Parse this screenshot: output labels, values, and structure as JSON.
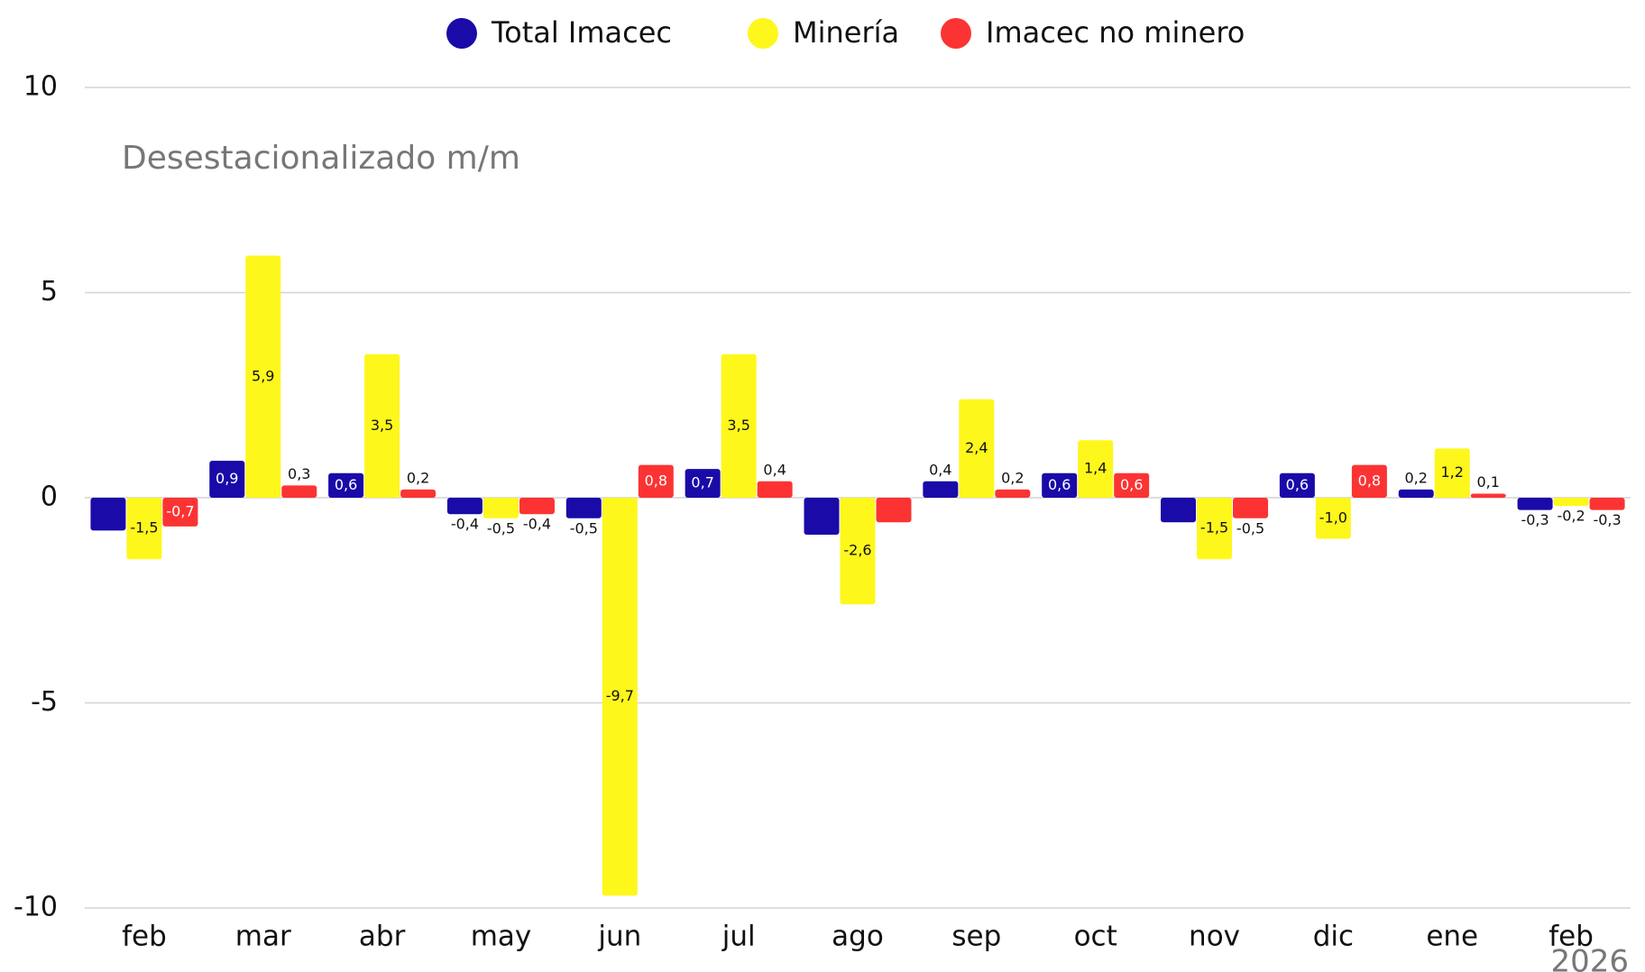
{
  "chart_data": {
    "type": "bar",
    "subtitle": "Desestacionalizado m/m",
    "annotation": "2026",
    "categories": [
      "feb",
      "mar",
      "abr",
      "may",
      "jun",
      "jul",
      "ago",
      "sep",
      "oct",
      "nov",
      "dic",
      "ene",
      "feb"
    ],
    "series": [
      {
        "name": "Total Imacec",
        "color": "#1a0aa8",
        "values": [
          -0.8,
          0.9,
          0.6,
          -0.4,
          -0.5,
          0.7,
          -0.9,
          0.4,
          0.6,
          -0.6,
          0.6,
          0.2,
          -0.3
        ],
        "value_labels": [
          null,
          "0,9",
          "0,6",
          "-0,4",
          "-0,5",
          "0,7",
          null,
          "0,4",
          "0,6",
          null,
          "0,6",
          "0,2",
          "-0,3"
        ]
      },
      {
        "name": "Minería",
        "color": "#fef71c",
        "values": [
          -1.5,
          5.9,
          3.5,
          -0.5,
          -9.7,
          3.5,
          -2.6,
          2.4,
          1.4,
          -1.5,
          -1.0,
          1.2,
          -0.2
        ],
        "value_labels": [
          "-1,5",
          "5,9",
          "3,5",
          "-0,5",
          "-9,7",
          "3,5",
          "-2,6",
          "2,4",
          "1,4",
          "-1,5",
          "-1,0",
          "1,2",
          "-0,2"
        ]
      },
      {
        "name": "Imacec no minero",
        "color": "#fc3333",
        "values": [
          -0.7,
          0.3,
          0.2,
          -0.4,
          0.8,
          0.4,
          -0.6,
          0.2,
          0.6,
          -0.5,
          0.8,
          0.1,
          -0.3
        ],
        "value_labels": [
          "-0,7",
          "0,3",
          "0,2",
          "-0,4",
          "0,8",
          "0,4",
          null,
          "0,2",
          "0,6",
          "-0,5",
          "0,8",
          "0,1",
          "-0,3"
        ]
      }
    ],
    "ylim": [
      -10,
      10
    ],
    "yticks": [
      -10,
      -5,
      0,
      5,
      10
    ],
    "grid": true,
    "legend": "top"
  }
}
